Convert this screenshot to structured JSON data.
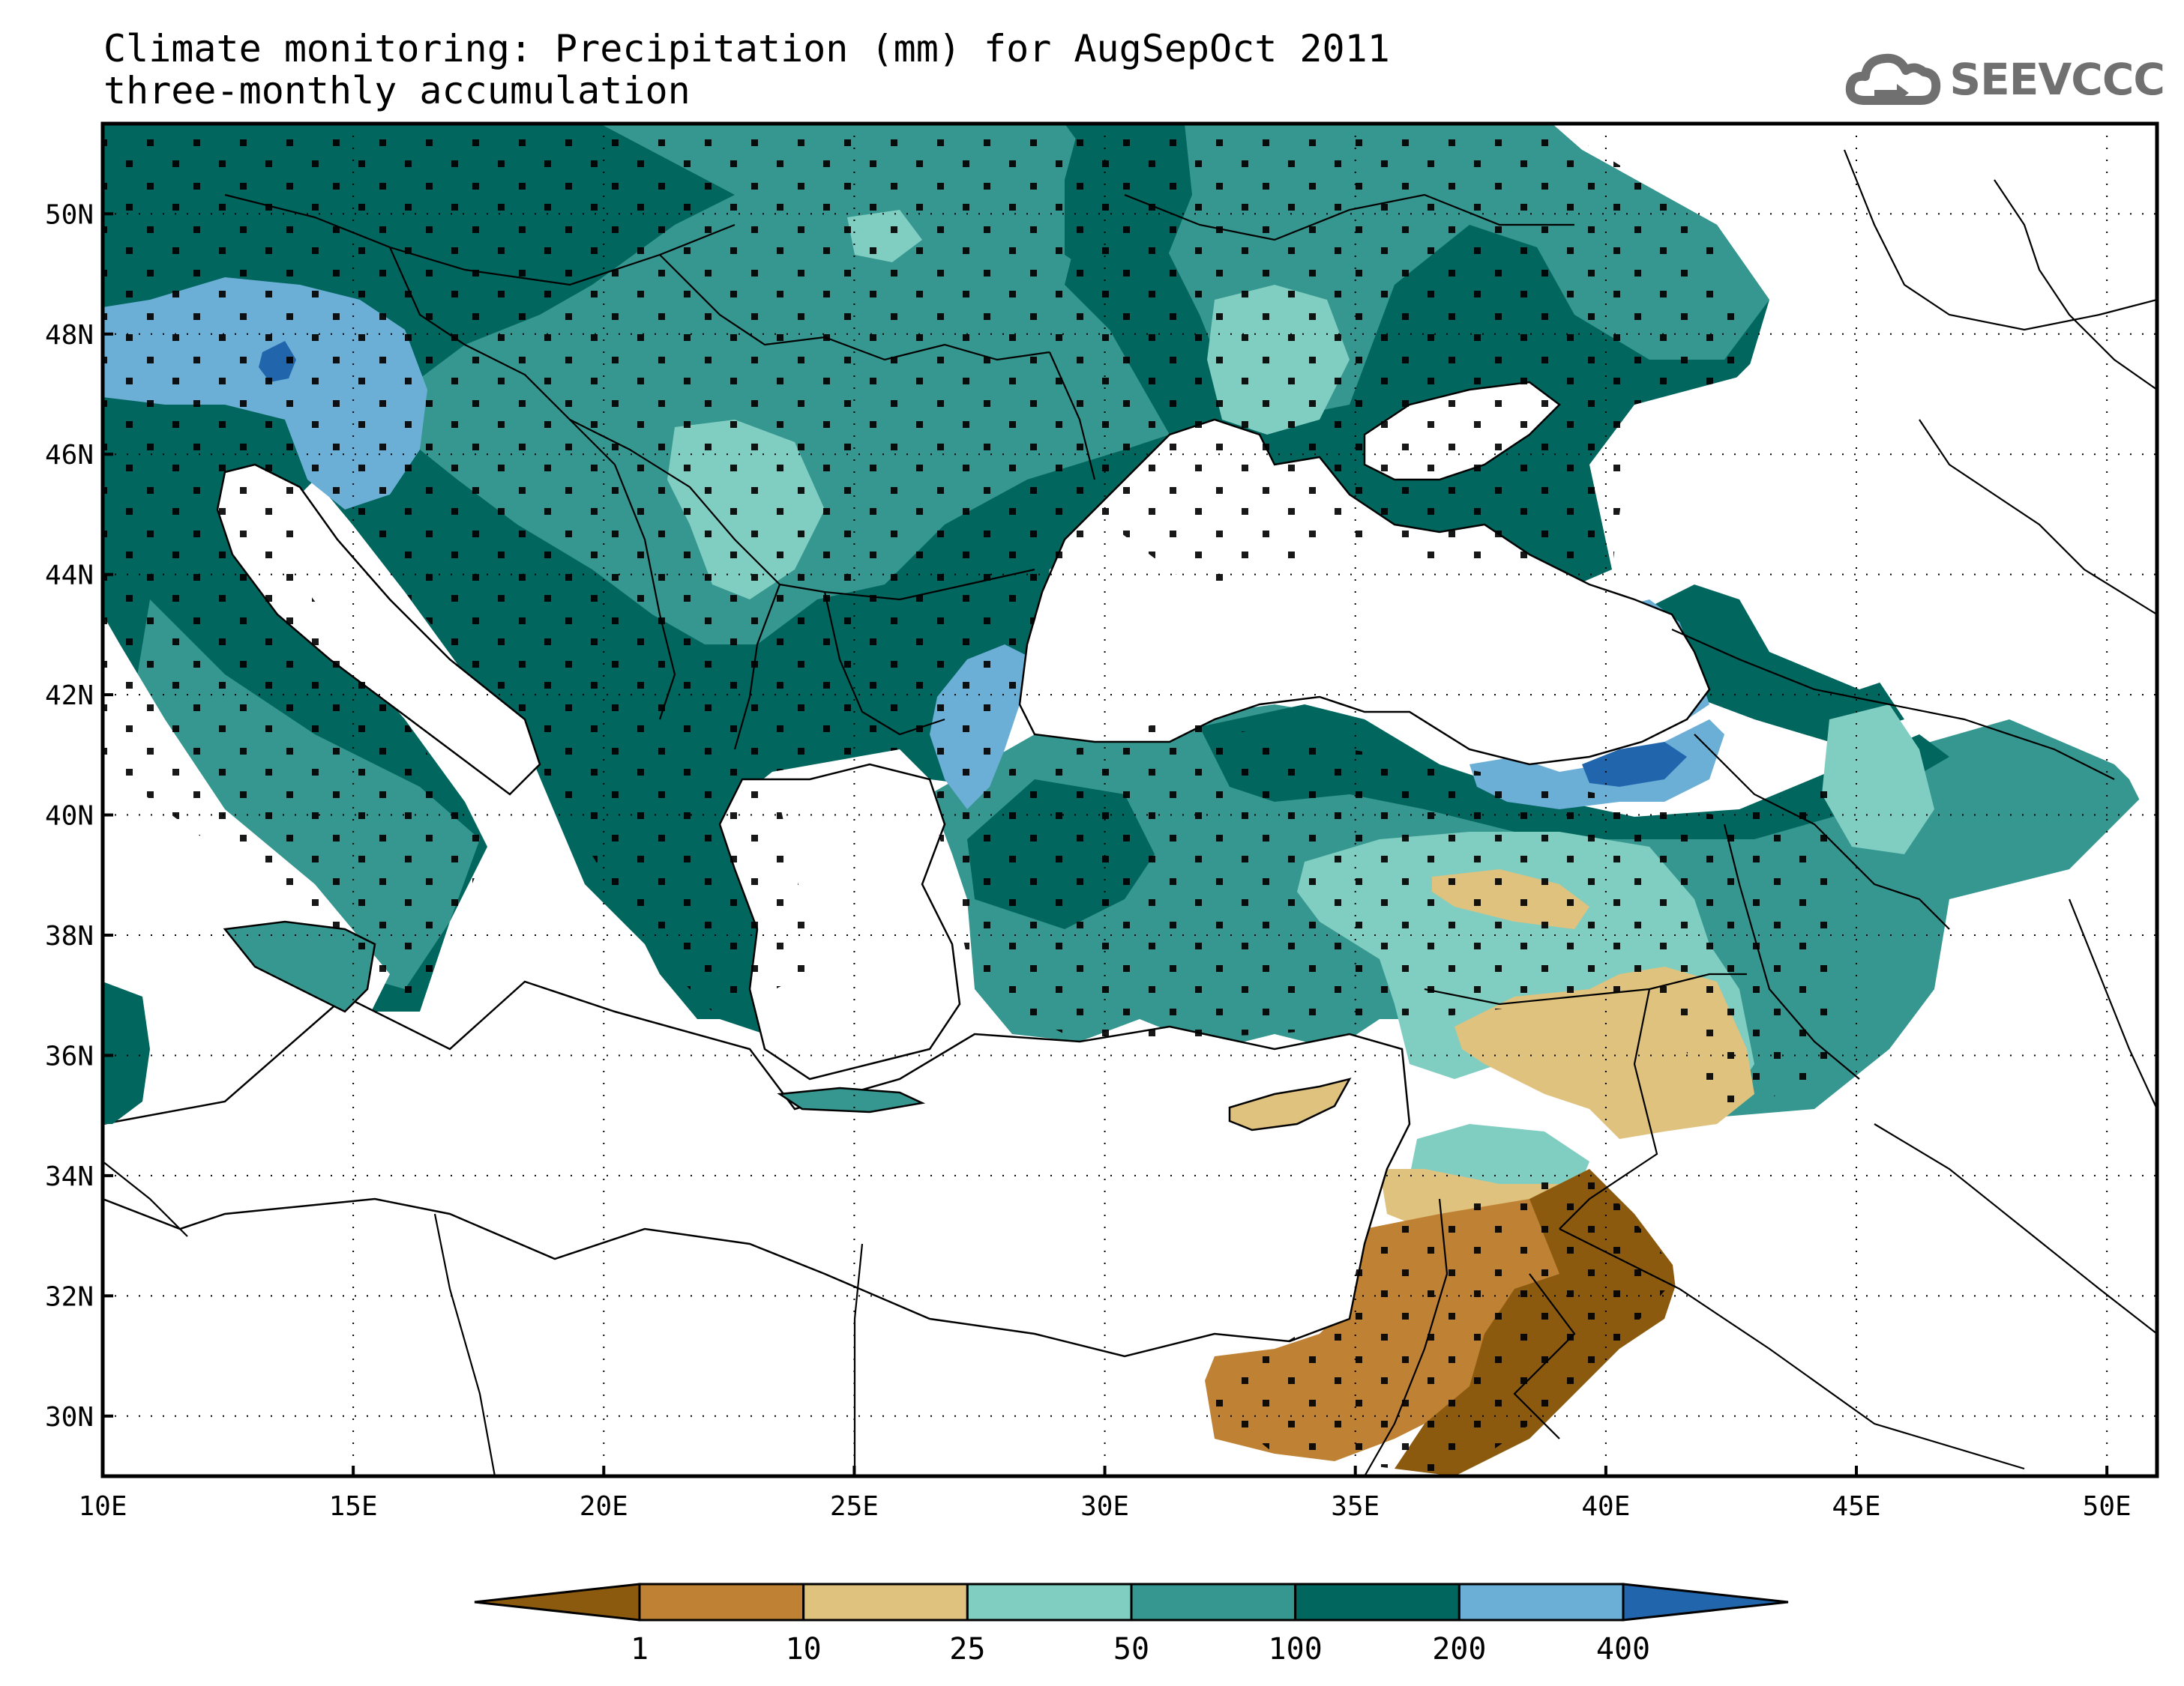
{
  "title": {
    "line1": "Climate monitoring: Precipitation (mm) for AugSepOct 2011",
    "line2": "three-monthly accumulation"
  },
  "logo": {
    "text": "SEEVCCC",
    "icon": "cloud-icon",
    "color": "#707070"
  },
  "map": {
    "lon_range": [
      10,
      51
    ],
    "lat_range": [
      29,
      51.5
    ],
    "x_ticks": [
      "10E",
      "15E",
      "20E",
      "25E",
      "30E",
      "35E",
      "40E",
      "45E",
      "50E"
    ],
    "y_ticks": [
      "30N",
      "32N",
      "34N",
      "36N",
      "38N",
      "40N",
      "42N",
      "44N",
      "46N",
      "48N",
      "50N"
    ],
    "grid": "dotted"
  },
  "legend": {
    "thresholds": [
      "1",
      "10",
      "25",
      "50",
      "100",
      "200",
      "400"
    ],
    "colors": [
      "#8b5a0f",
      "#bf8234",
      "#dfc27d",
      "#80cdc1",
      "#35978f",
      "#01665e",
      "#6baed6",
      "#2166ac"
    ]
  }
}
